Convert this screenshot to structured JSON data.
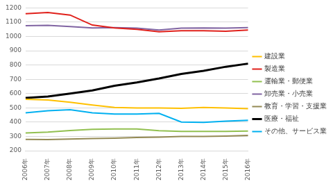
{
  "chart_data": {
    "type": "line",
    "categories": [
      "2006年",
      "2007年",
      "2008年",
      "2009年",
      "2010年",
      "2011年",
      "2012年",
      "2013年",
      "2014年",
      "2015年",
      "2016年"
    ],
    "series": [
      {
        "name": "建設業",
        "color": "#FFC000",
        "values": [
          560,
          555,
          540,
          520,
          503,
          500,
          500,
          497,
          503,
          500,
          495
        ]
      },
      {
        "name": "製造業",
        "color": "#E0201B",
        "values": [
          1160,
          1168,
          1150,
          1080,
          1060,
          1050,
          1033,
          1040,
          1040,
          1037,
          1045
        ]
      },
      {
        "name": "運輸業・郵便業",
        "color": "#92C050",
        "values": [
          325,
          330,
          342,
          350,
          352,
          352,
          340,
          335,
          335,
          335,
          338
        ]
      },
      {
        "name": "卸売業・小売業",
        "color": "#8064A2",
        "values": [
          1075,
          1078,
          1070,
          1060,
          1062,
          1058,
          1045,
          1058,
          1060,
          1058,
          1062
        ]
      },
      {
        "name": "教育・学習・支援業",
        "color": "#948A54",
        "values": [
          280,
          278,
          282,
          286,
          288,
          293,
          295,
          300,
          300,
          302,
          307
        ]
      },
      {
        "name": "医療・福祉",
        "color": "#000000",
        "values": [
          570,
          580,
          600,
          622,
          655,
          678,
          706,
          738,
          760,
          788,
          810
        ]
      },
      {
        "name": "その他、サービス業",
        "color": "#00B0F0",
        "values": [
          466,
          480,
          487,
          465,
          457,
          457,
          462,
          401,
          399,
          407,
          413
        ]
      }
    ],
    "ylim": [
      200,
      1200
    ],
    "yticks": [
      200,
      300,
      400,
      500,
      600,
      700,
      800,
      900,
      1000,
      1100,
      1200
    ],
    "grid": true,
    "legend": "right"
  }
}
